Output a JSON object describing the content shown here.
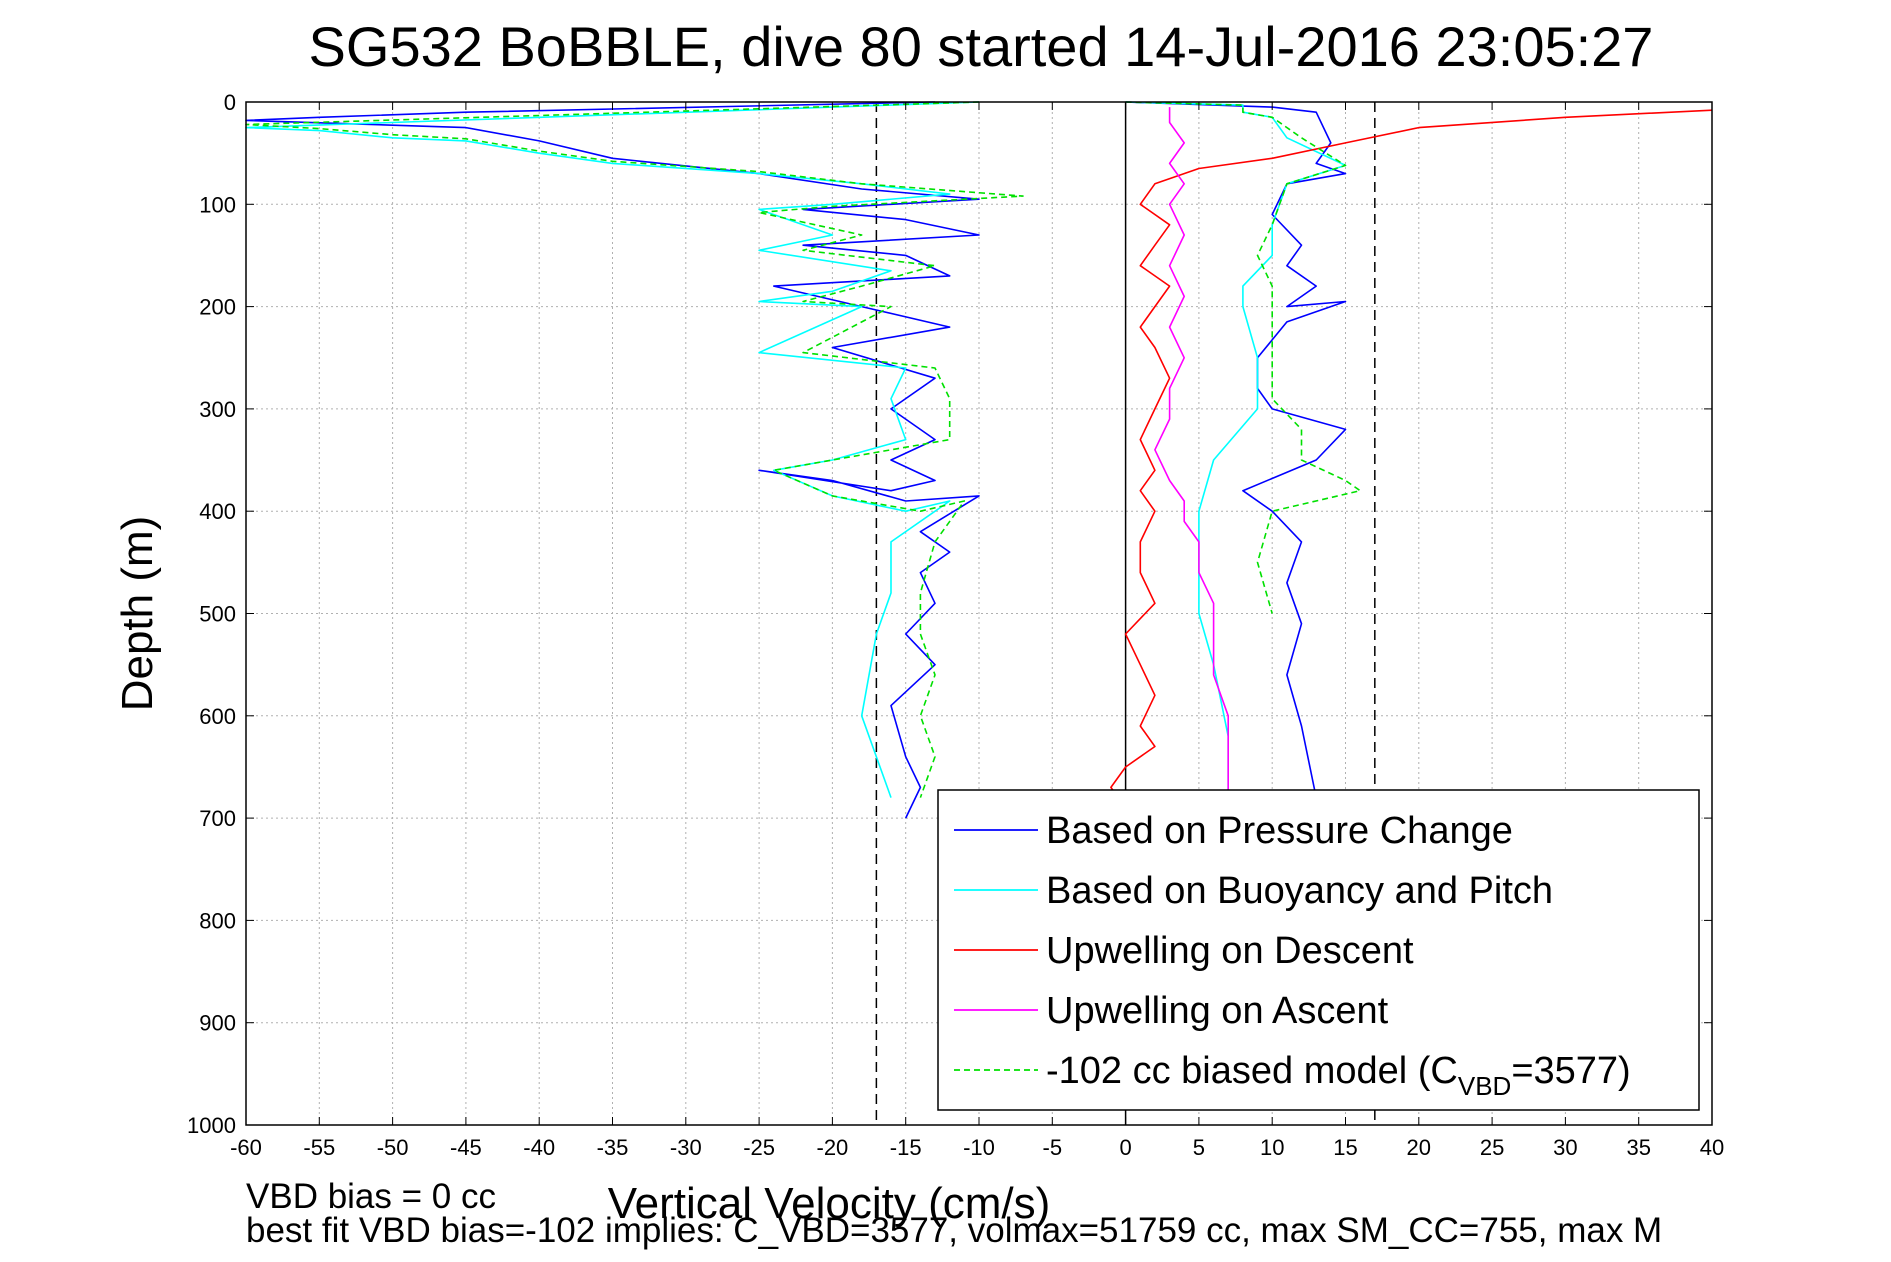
{
  "chart_data": {
    "type": "line",
    "title": "SG532 BoBBLE, dive 80 started 14-Jul-2016 23:05:27",
    "xlabel": "Vertical Velocity (cm/s)",
    "ylabel": "Depth (m)",
    "xlim": [
      -60,
      40
    ],
    "ylim": [
      0,
      1000
    ],
    "y_reversed": true,
    "grid": true,
    "x_ticks": [
      -60,
      -55,
      -50,
      -45,
      -40,
      -35,
      -30,
      -25,
      -20,
      -15,
      -10,
      -5,
      0,
      5,
      10,
      15,
      20,
      25,
      30,
      35,
      40
    ],
    "y_ticks": [
      0,
      100,
      200,
      300,
      400,
      500,
      600,
      700,
      800,
      900,
      1000
    ],
    "reference_lines": {
      "dashed_x": [
        -17,
        17
      ],
      "solid_x": [
        0
      ],
      "color": "#000000"
    },
    "legend_position": "bottom-right",
    "series": [
      {
        "name": "Based on Pressure Change",
        "color": "#0000ff",
        "x": [
          -13,
          -45,
          -55,
          -60,
          -45,
          -40,
          -35,
          -25,
          -18,
          -10,
          -22,
          -15,
          -10,
          -22,
          -15,
          -12,
          -24,
          -18,
          -12,
          -20,
          -13,
          -16,
          -13,
          -16,
          -13,
          -16,
          -25,
          -20,
          -15,
          -10,
          -14,
          -12,
          -14,
          -13,
          -15,
          -13,
          -16,
          -15,
          -14,
          -15,
          0,
          10,
          13,
          14,
          13,
          15,
          11,
          10,
          12,
          11,
          13,
          11,
          15,
          11,
          9,
          9,
          10,
          15,
          13,
          8,
          10,
          12,
          11,
          12,
          11,
          12,
          13
        ],
        "y": [
          0,
          10,
          15,
          18,
          25,
          38,
          55,
          70,
          85,
          95,
          105,
          115,
          130,
          140,
          150,
          170,
          180,
          200,
          220,
          240,
          270,
          300,
          330,
          350,
          370,
          380,
          360,
          370,
          390,
          385,
          420,
          440,
          460,
          490,
          520,
          550,
          590,
          640,
          670,
          700,
          0,
          5,
          10,
          40,
          60,
          70,
          80,
          110,
          140,
          160,
          180,
          200,
          195,
          215,
          250,
          280,
          300,
          320,
          350,
          380,
          400,
          430,
          470,
          510,
          560,
          610,
          680
        ]
      },
      {
        "name": "Based on Buoyancy and Pitch",
        "color": "#00ffff",
        "x": [
          -10,
          -60,
          -55,
          -50,
          -45,
          -40,
          -35,
          -25,
          -18,
          -12,
          -20,
          -25,
          -20,
          -25,
          -16,
          -20,
          -25,
          -18,
          -25,
          -15,
          -16,
          -15,
          -20,
          -24,
          -20,
          -15,
          -12,
          -16,
          -16,
          -17,
          -18,
          -16,
          0,
          8,
          8,
          10,
          11,
          15,
          11,
          10,
          10,
          8,
          8,
          9,
          9,
          6,
          5,
          5,
          5,
          6,
          7,
          7
        ],
        "y": [
          0,
          25,
          28,
          35,
          38,
          50,
          60,
          70,
          80,
          90,
          100,
          105,
          130,
          145,
          165,
          185,
          195,
          200,
          245,
          260,
          290,
          330,
          350,
          360,
          385,
          400,
          390,
          430,
          480,
          520,
          600,
          680,
          0,
          3,
          10,
          15,
          35,
          62,
          80,
          120,
          150,
          180,
          200,
          250,
          300,
          350,
          400,
          450,
          500,
          550,
          620,
          680
        ]
      },
      {
        "name": "Upwelling on Descent",
        "color": "#ff0000",
        "x": [
          40,
          30,
          20,
          15,
          10,
          5,
          2,
          1,
          3,
          2,
          1,
          3,
          2,
          1,
          2,
          3,
          2,
          1,
          2,
          1,
          2,
          1,
          1,
          2,
          0,
          1,
          2,
          1,
          2,
          0,
          -1,
          0
        ],
        "y": [
          8,
          15,
          25,
          40,
          55,
          65,
          80,
          100,
          120,
          140,
          160,
          180,
          200,
          220,
          240,
          270,
          300,
          330,
          360,
          380,
          400,
          430,
          460,
          490,
          520,
          550,
          580,
          610,
          630,
          650,
          670,
          690
        ]
      },
      {
        "name": "Upwelling on Ascent",
        "color": "#ff00ff",
        "x": [
          3,
          3,
          4,
          3,
          4,
          3,
          4,
          3,
          4,
          3,
          4,
          3,
          3,
          2,
          3,
          4,
          4,
          5,
          5,
          6,
          6,
          6,
          7,
          7,
          7
        ],
        "y": [
          5,
          20,
          40,
          60,
          80,
          100,
          130,
          160,
          190,
          220,
          250,
          280,
          310,
          340,
          370,
          390,
          410,
          430,
          460,
          490,
          520,
          560,
          600,
          640,
          680
        ]
      },
      {
        "name": "-102 cc biased model (C_VBD=3577)",
        "color": "#00e000",
        "dashed": true,
        "x": [
          -10,
          -60,
          -55,
          -50,
          -45,
          -40,
          -35,
          -25,
          -18,
          -7,
          -20,
          -25,
          -18,
          -22,
          -13,
          -18,
          -22,
          -16,
          -22,
          -13,
          -12,
          -12,
          -20,
          -24,
          -20,
          -14,
          -11,
          -13,
          -14,
          -14,
          -13,
          -14,
          -13,
          -14,
          0,
          8,
          8,
          10,
          12,
          15,
          11,
          10,
          9,
          10,
          10,
          10,
          10,
          12,
          12,
          15,
          16,
          10,
          9,
          10
        ],
        "y": [
          0,
          22,
          26,
          32,
          36,
          48,
          58,
          68,
          80,
          92,
          102,
          108,
          130,
          145,
          160,
          180,
          195,
          200,
          245,
          260,
          290,
          330,
          350,
          360,
          385,
          400,
          390,
          430,
          480,
          520,
          560,
          600,
          640,
          680,
          0,
          3,
          10,
          15,
          35,
          62,
          80,
          120,
          150,
          180,
          200,
          250,
          290,
          320,
          350,
          370,
          380,
          400,
          450,
          500
        ]
      }
    ]
  },
  "legend": {
    "entries": [
      {
        "text": "Based on Pressure Change",
        "color": "#0000ff"
      },
      {
        "text": "Based on Buoyancy and Pitch",
        "color": "#00ffff"
      },
      {
        "text": "Upwelling on Descent",
        "color": "#ff0000"
      },
      {
        "text": "Upwelling on Ascent",
        "color": "#ff00ff"
      },
      {
        "text": "-102 cc biased model (C",
        "sub": "VBD",
        "after": "=3577)",
        "color": "#00e000"
      }
    ]
  },
  "footnotes": {
    "line1": "VBD bias = 0 cc",
    "line2": "best fit VBD bias=-102 implies: C_VBD=3577, volmax=51759 cc, max SM_CC=755, max M"
  }
}
